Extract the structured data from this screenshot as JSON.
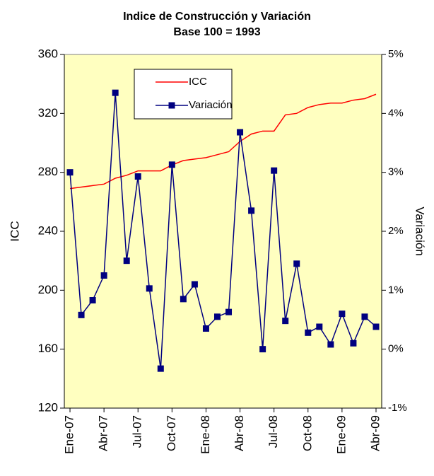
{
  "chart_data": {
    "type": "line",
    "title": "Indice de Construcción y Variación",
    "subtitle": "Base 100 = 1993",
    "y_label": "ICC",
    "y2_label": "Variación",
    "categories": [
      "Ene-07",
      null,
      null,
      "Abr-07",
      null,
      null,
      "Jul-07",
      null,
      null,
      "Oct-07",
      null,
      null,
      "Ene-08",
      null,
      null,
      "Abr-08",
      null,
      null,
      "Jul-08",
      null,
      null,
      "Oct-08",
      null,
      null,
      "Ene-09",
      null,
      null,
      "Abr-09"
    ],
    "series": [
      {
        "name": "ICC",
        "color": "#ff0000",
        "axis": "y",
        "marker": "none",
        "values": [
          269,
          270,
          271,
          272,
          276,
          278,
          281,
          281,
          281,
          285,
          288,
          289,
          290,
          292,
          294,
          301,
          306,
          308,
          308,
          319,
          320,
          324,
          326,
          327,
          327,
          329,
          330,
          333
        ]
      },
      {
        "name": "Variación",
        "color": "#000080",
        "axis": "y2",
        "marker": "square",
        "values": [
          3.0,
          0.58,
          0.83,
          1.25,
          4.35,
          1.5,
          2.93,
          1.03,
          -0.33,
          3.13,
          0.85,
          1.1,
          0.35,
          0.55,
          0.63,
          3.68,
          2.35,
          0.0,
          3.03,
          0.48,
          1.45,
          0.28,
          0.38,
          0.08,
          0.6,
          0.1,
          0.55,
          0.38
        ]
      }
    ],
    "ylim": [
      120,
      360
    ],
    "yticks": [
      120,
      160,
      200,
      240,
      280,
      320,
      360
    ],
    "y2lim": [
      -1,
      5
    ],
    "y2ticks": [
      {
        "value": -1,
        "label": "-1%"
      },
      {
        "value": 0,
        "label": "0%"
      },
      {
        "value": 1,
        "label": "1%"
      },
      {
        "value": 2,
        "label": "2%"
      },
      {
        "value": 3,
        "label": "3%"
      },
      {
        "value": 4,
        "label": "4%"
      },
      {
        "value": 5,
        "label": "5%"
      }
    ],
    "plot_background": "#ffffc0",
    "grid": false,
    "legend": "top-left"
  }
}
